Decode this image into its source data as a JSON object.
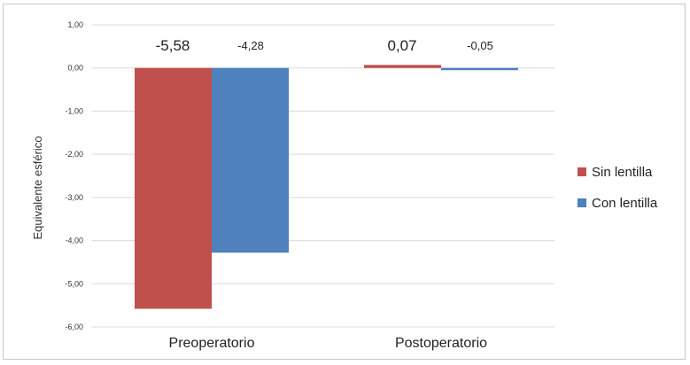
{
  "chart_data": {
    "type": "bar",
    "title": "",
    "xlabel": "",
    "ylabel": "Equivalente esférico",
    "ylim": [
      -6.0,
      1.0
    ],
    "yticks": [
      "1,00",
      "0,00",
      "-1,00",
      "-2,00",
      "-3,00",
      "-4,00",
      "-5,00",
      "-6,00"
    ],
    "categories": [
      "Preoperatorio",
      "Postoperatorio"
    ],
    "series": [
      {
        "name": "Sin lentilla",
        "color": "#c0504d",
        "values": [
          -5.58,
          0.07
        ],
        "labels": [
          "-5,58",
          "0,07"
        ]
      },
      {
        "name": "Con lentilla",
        "color": "#4f81bd",
        "values": [
          -4.28,
          -0.05
        ],
        "labels": [
          "-4,28",
          "-0,05"
        ]
      }
    ],
    "grid": true,
    "legend": "right"
  }
}
